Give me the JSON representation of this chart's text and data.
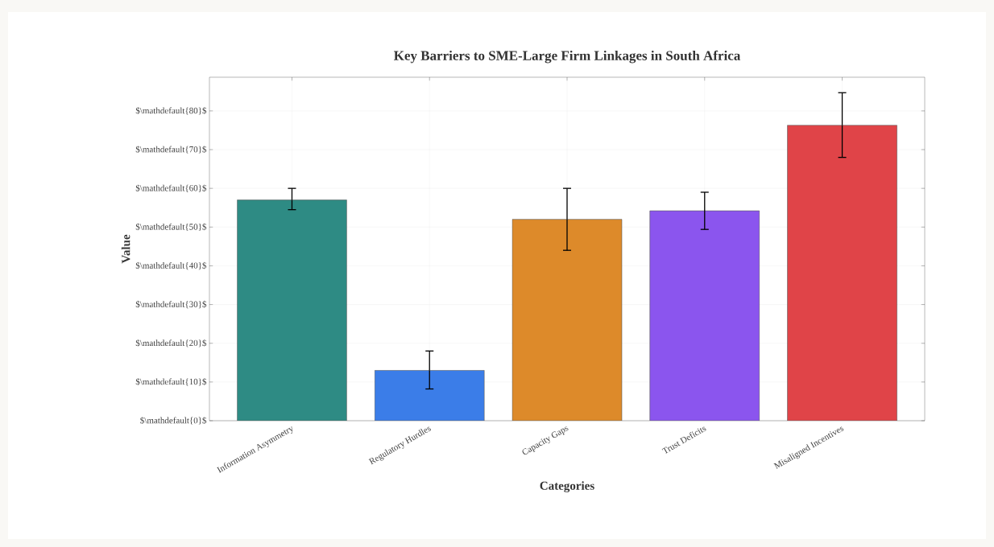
{
  "chart_data": {
    "type": "bar",
    "title": "Key Barriers to SME-Large Firm Linkages in South Africa",
    "xlabel": "Categories",
    "ylabel": "Value",
    "categories": [
      "Information Asymmetry",
      "Regulatory Hurdles",
      "Capacity Gaps",
      "Trust Deficits",
      "Misaligned Incentives"
    ],
    "values": [
      57,
      13,
      52,
      54.2,
      76.3
    ],
    "colors": [
      "#2e8b84",
      "#3b7de8",
      "#dd8a2a",
      "#8b55ee",
      "#e04448"
    ],
    "errors": [
      [
        54.5,
        60
      ],
      [
        8.2,
        18
      ],
      [
        44,
        60
      ],
      [
        49.4,
        59
      ],
      [
        68,
        84.7
      ]
    ],
    "ylim": [
      0,
      88.7
    ],
    "yticks": [
      {
        "value": 0,
        "label": "$\\mathdefault{0}$"
      },
      {
        "value": 10,
        "label": "$\\mathdefault{10}$"
      },
      {
        "value": 20,
        "label": "$\\mathdefault{20}$"
      },
      {
        "value": 30,
        "label": "$\\mathdefault{30}$"
      },
      {
        "value": 40,
        "label": "$\\mathdefault{40}$"
      },
      {
        "value": 50,
        "label": "$\\mathdefault{50}$"
      },
      {
        "value": 60,
        "label": "$\\mathdefault{60}$"
      },
      {
        "value": 70,
        "label": "$\\mathdefault{70}$"
      },
      {
        "value": 80,
        "label": "$\\mathdefault{80}$"
      }
    ],
    "grid": true
  }
}
